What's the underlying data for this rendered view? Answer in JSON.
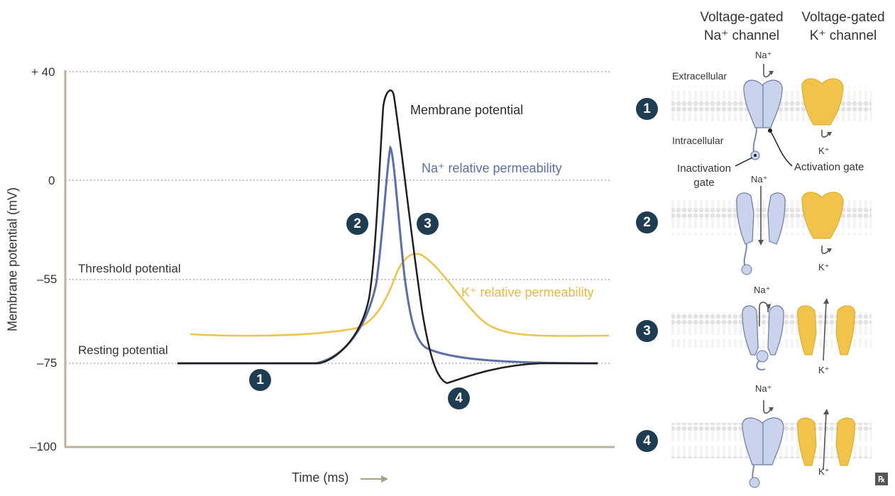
{
  "chart": {
    "ylabel": "Membrane potential (mV)",
    "xlabel": "Time (ms)",
    "y_ticks": [
      "+ 40",
      "0",
      "–55",
      "–75",
      "–100"
    ],
    "threshold_label": "Threshold potential",
    "resting_label": "Resting potential",
    "membrane_label": "Membrane potential",
    "na_label": "Na⁺ relative permeability",
    "k_label": "K⁺  relative permeability",
    "phase_badges": [
      "1",
      "2",
      "3",
      "4"
    ],
    "colors": {
      "membrane": "#1f1f1f",
      "na": "#5b6ea8",
      "k": "#f0c24b",
      "badge": "#1f3d52",
      "axis": "#b9b39a"
    }
  },
  "chart_data": {
    "type": "line",
    "xlabel": "Time (ms)",
    "ylabel": "Membrane potential (mV)",
    "ylim": [
      -100,
      40
    ],
    "y_ticks": [
      40,
      0,
      -55,
      -75,
      -100
    ],
    "reference_lines": [
      {
        "label": "Threshold potential",
        "y": -55
      },
      {
        "label": "Resting potential",
        "y": -75
      }
    ],
    "series": [
      {
        "name": "Membrane potential",
        "note": "rises from -75 mV rest to ~+33 mV, falls, undershoots to ~-86 mV, returns to -75 mV"
      },
      {
        "name": "Na⁺ relative permeability",
        "note": "sharp peak during depolarization"
      },
      {
        "name": "K⁺  relative permeability",
        "note": "delayed broader peak during repolarization"
      }
    ]
  },
  "channels": {
    "na_header_line1": "Voltage-gated",
    "na_header_line2": "Na⁺ channel",
    "k_header_line1": "Voltage-gated",
    "k_header_line2": "K⁺ channel",
    "extracellular": "Extracellular",
    "intracellular": "Intracellular",
    "inactivation_gate_line1": "Inactivation",
    "inactivation_gate_line2": "gate",
    "activation_gate": "Activation gate",
    "na_ion": "Na⁺",
    "k_ion": "K⁺",
    "rows": [
      "1",
      "2",
      "3",
      "4"
    ]
  },
  "logo": "℞"
}
